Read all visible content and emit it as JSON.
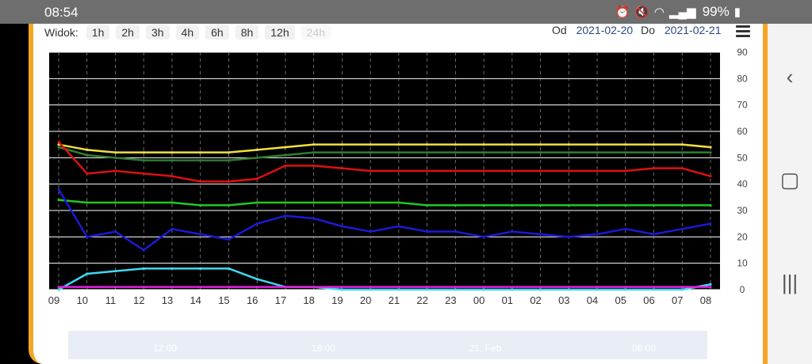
{
  "status": {
    "time": "08:54",
    "battery": "99%"
  },
  "toolbar": {
    "label": "Widok:",
    "ranges": [
      "1h",
      "2h",
      "3h",
      "4h",
      "6h",
      "8h",
      "12h",
      "24h"
    ],
    "disabled_range": "24h",
    "from_label": "Od",
    "from_date": "2021-02-20",
    "to_label": "Do",
    "to_date": "2021-02-21"
  },
  "colors": {
    "accent": "#f5a623",
    "plot_bg": "#000000",
    "yellow": "#f0e040",
    "green_dark": "#2e7d32",
    "red": "#e01010",
    "green": "#22c822",
    "blue": "#1a1ad8",
    "cyan": "#40d8f0",
    "magenta": "#e020e0"
  },
  "chart_data": {
    "type": "line",
    "x": [
      "09",
      "10",
      "11",
      "12",
      "13",
      "14",
      "15",
      "16",
      "17",
      "18",
      "19",
      "20",
      "21",
      "22",
      "23",
      "00",
      "01",
      "02",
      "03",
      "04",
      "05",
      "06",
      "07",
      "08"
    ],
    "ylim": [
      0,
      90
    ],
    "y_ticks": [
      0,
      10,
      20,
      30,
      40,
      50,
      60,
      70,
      80,
      90
    ],
    "grid": true,
    "series": [
      {
        "color": "yellow",
        "values": [
          55,
          53,
          52,
          52,
          52,
          52,
          52,
          53,
          54,
          55,
          55,
          55,
          55,
          55,
          55,
          55,
          55,
          55,
          55,
          55,
          55,
          55,
          55,
          54
        ]
      },
      {
        "color": "green_dark",
        "values": [
          54,
          51,
          50,
          49,
          49,
          49,
          49,
          50,
          51,
          52,
          52,
          52,
          52,
          52,
          52,
          52,
          52,
          52,
          52,
          52,
          52,
          52,
          52,
          52
        ]
      },
      {
        "color": "red",
        "values": [
          56,
          44,
          45,
          44,
          43,
          41,
          41,
          42,
          47,
          47,
          46,
          45,
          45,
          45,
          45,
          45,
          45,
          45,
          45,
          45,
          45,
          46,
          46,
          43
        ]
      },
      {
        "color": "green",
        "values": [
          34,
          33,
          33,
          33,
          33,
          32,
          32,
          33,
          33,
          33,
          33,
          33,
          33,
          32,
          32,
          32,
          32,
          32,
          32,
          32,
          32,
          32,
          32,
          32
        ]
      },
      {
        "color": "blue",
        "values": [
          38,
          20,
          22,
          15,
          23,
          21,
          19,
          25,
          28,
          27,
          24,
          22,
          24,
          22,
          22,
          20,
          22,
          21,
          20,
          21,
          23,
          21,
          23,
          25
        ]
      },
      {
        "color": "cyan",
        "values": [
          0,
          6,
          7,
          8,
          8,
          8,
          8,
          4,
          1,
          1,
          0,
          0,
          0,
          0,
          0,
          0,
          0,
          0,
          0,
          0,
          0,
          0,
          0,
          2
        ]
      },
      {
        "color": "magenta",
        "values": [
          1,
          1,
          1,
          1,
          1,
          1,
          1,
          1,
          1,
          1,
          1,
          1,
          1,
          1,
          1,
          1,
          1,
          1,
          1,
          1,
          1,
          1,
          1,
          1
        ]
      }
    ]
  },
  "navigator": {
    "labels": [
      "12:00",
      "18:00",
      "21. Feb",
      "06:00"
    ]
  }
}
